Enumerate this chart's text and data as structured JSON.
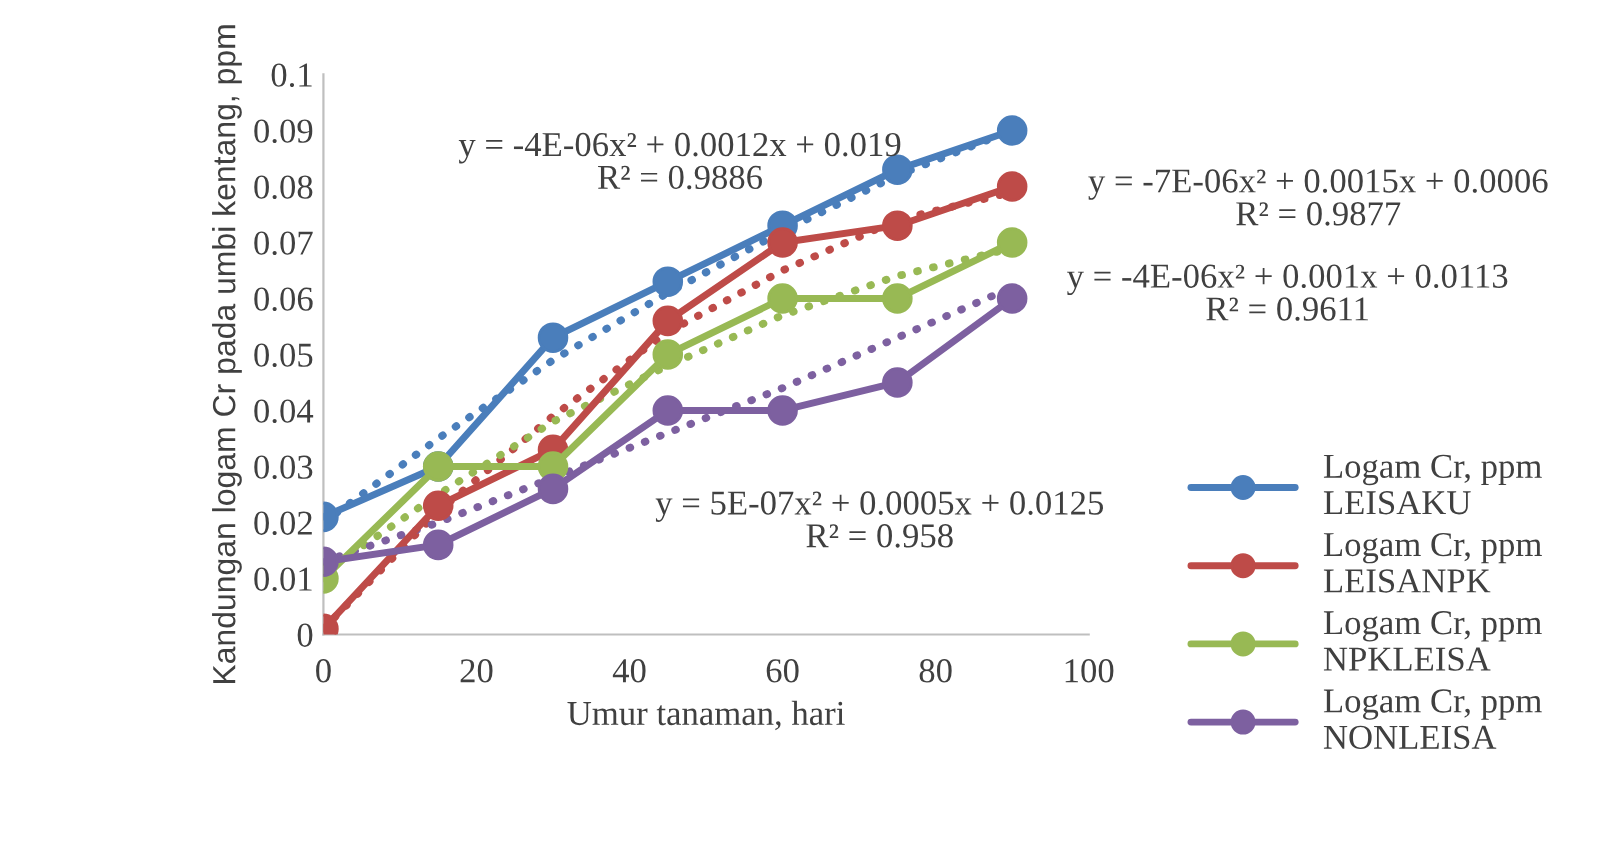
{
  "chart_data": {
    "type": "line",
    "xlabel": "Umur tanaman, hari",
    "ylabel": "Kandungan logam Cr pada umbi kentang, ppm",
    "x": [
      0,
      15,
      30,
      45,
      60,
      75,
      90
    ],
    "xlim": [
      0,
      100
    ],
    "xticks": [
      0,
      20,
      40,
      60,
      80,
      100
    ],
    "ylim": [
      0,
      0.1
    ],
    "yticks": [
      0,
      0.01,
      0.02,
      0.03,
      0.04,
      0.05,
      0.06,
      0.07,
      0.08,
      0.09,
      0.1
    ],
    "grid": false,
    "legend": "right",
    "marker": "circle",
    "line_style": "solid",
    "series": [
      {
        "name": "Logam Cr, ppm LEISAKU",
        "color": "#4a7ebb",
        "values": [
          0.021,
          0.03,
          0.053,
          0.063,
          0.073,
          0.083,
          0.09
        ]
      },
      {
        "name": "Logam Cr, ppm LEISANPK",
        "color": "#be4b48",
        "values": [
          0.001,
          0.023,
          0.033,
          0.056,
          0.07,
          0.073,
          0.08
        ]
      },
      {
        "name": "Logam Cr, ppm NPKLEISA",
        "color": "#98b954",
        "values": [
          0.01,
          0.03,
          0.03,
          0.05,
          0.06,
          0.06,
          0.07
        ]
      },
      {
        "name": "Logam Cr, ppm NONLEISA",
        "color": "#7d60a0",
        "values": [
          0.013,
          0.016,
          0.026,
          0.04,
          0.04,
          0.045,
          0.06
        ]
      },
      {
        "type": "line",
        "marker": "none",
        "line_style": "dotted",
        "color": "#4a7ebb",
        "x": [
          0,
          15,
          30,
          45,
          60,
          75,
          90
        ],
        "values": [
          0.02,
          0.035,
          0.049,
          0.061,
          0.072,
          0.082,
          0.09
        ]
      },
      {
        "type": "line",
        "marker": "none",
        "line_style": "dotted",
        "color": "#be4b48",
        "x": [
          0,
          15,
          30,
          45,
          60,
          75,
          90
        ],
        "values": [
          0.001,
          0.022,
          0.039,
          0.054,
          0.065,
          0.074,
          0.079
        ]
      },
      {
        "type": "line",
        "marker": "none",
        "line_style": "dotted",
        "color": "#98b954",
        "x": [
          0,
          15,
          30,
          45,
          60,
          75,
          90
        ],
        "values": [
          0.011,
          0.025,
          0.038,
          0.048,
          0.057,
          0.064,
          0.069
        ]
      },
      {
        "type": "line",
        "marker": "none",
        "line_style": "dotted",
        "color": "#7d60a0",
        "x": [
          0,
          15,
          30,
          45,
          60,
          75,
          90
        ],
        "values": [
          0.013,
          0.02,
          0.028,
          0.036,
          0.044,
          0.053,
          0.062
        ]
      }
    ],
    "annotations": [
      "y = -4E-06x² + 0.0012x + 0.019\nR² = 0.9886",
      "y = -7E-06x² + 0.0015x + 0.0006\nR² = 0.9877",
      "y = -4E-06x² + 0.001x + 0.0113\nR² = 0.9611",
      "y = 5E-07x² + 0.0005x + 0.0125\nR² = 0.958"
    ]
  }
}
